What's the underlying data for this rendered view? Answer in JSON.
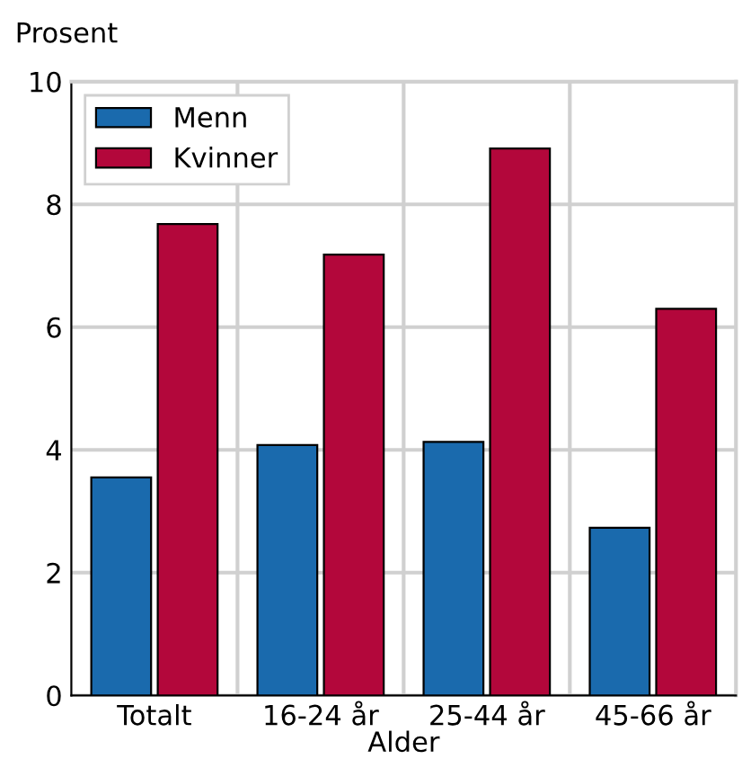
{
  "chart_data": {
    "type": "bar",
    "ylabel": "Prosent",
    "xlabel": "Alder",
    "categories": [
      "Totalt",
      "16-24 år",
      "25-44 år",
      "45-66 år"
    ],
    "series": [
      {
        "name": "Menn",
        "color": "#1a6aad",
        "values": [
          3.55,
          4.08,
          4.13,
          2.73
        ]
      },
      {
        "name": "Kvinner",
        "color": "#b3073b",
        "values": [
          7.68,
          7.18,
          8.91,
          6.3
        ]
      }
    ],
    "ylim": [
      0,
      10
    ],
    "yticks": [
      0,
      2,
      4,
      6,
      8,
      10
    ],
    "grid": true,
    "legend": "top left"
  }
}
